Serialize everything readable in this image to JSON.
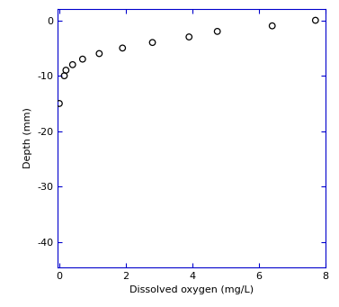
{
  "chart_data": {
    "type": "scatter",
    "x_label": "Dissolved oxygen (mg/L)",
    "y_label": "Depth (mm)",
    "x": [
      7.7,
      6.4,
      4.75,
      3.9,
      2.8,
      1.9,
      1.2,
      0.7,
      0.4,
      0.2,
      0.15,
      0.0
    ],
    "values": [
      0,
      -1,
      -2,
      -3,
      -4,
      -5,
      -6,
      -7,
      -8,
      -9,
      -10,
      -15
    ],
    "color": "#000000",
    "marker": "circle",
    "xlim": [
      -0.05,
      8
    ],
    "xticks": [
      0,
      2,
      4,
      6,
      8
    ],
    "ylim": [
      -44.5,
      2
    ],
    "yticks": [
      0,
      -10,
      -20,
      -30,
      -40
    ],
    "grid": false
  }
}
